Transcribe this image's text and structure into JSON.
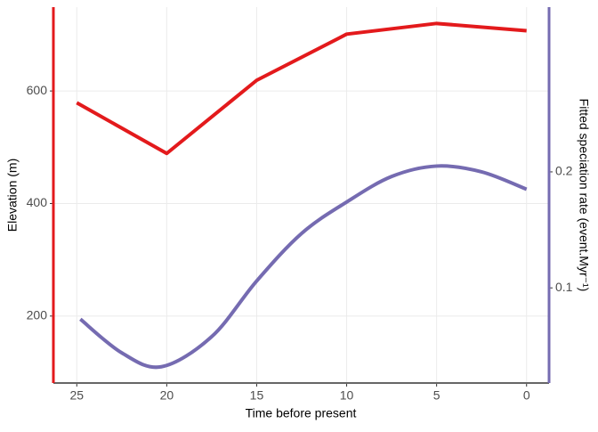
{
  "chart_data": {
    "type": "line",
    "xlabel": "Time before present",
    "ylabel": "Elevation (m)",
    "y2label": "Fitted speciation rate (event.Myr⁻¹)",
    "xlim": [
      26.3,
      -1.25
    ],
    "xticks": [
      25,
      20,
      15,
      10,
      5,
      0
    ],
    "ylim": [
      81,
      749
    ],
    "yticks": [
      200,
      400,
      600
    ],
    "y2lim": [
      0.018,
      0.342
    ],
    "y2ticks": [
      0.1,
      0.2
    ],
    "grid": true,
    "series": [
      {
        "name": "Elevation",
        "color": "#e31a1c",
        "axis": "y",
        "x": [
          25,
          20,
          15,
          10,
          5,
          0
        ],
        "values": [
          579,
          489,
          619,
          701,
          720,
          707
        ]
      },
      {
        "name": "Speciation rate",
        "color": "#756bb1",
        "axis": "y2",
        "smooth": true,
        "x": [
          24.8,
          22.5,
          20.3,
          17.5,
          15,
          12.5,
          10,
          7.5,
          5,
          2.5,
          0
        ],
        "values": [
          0.073,
          0.044,
          0.032,
          0.058,
          0.106,
          0.147,
          0.174,
          0.196,
          0.205,
          0.2,
          0.185
        ]
      }
    ]
  }
}
